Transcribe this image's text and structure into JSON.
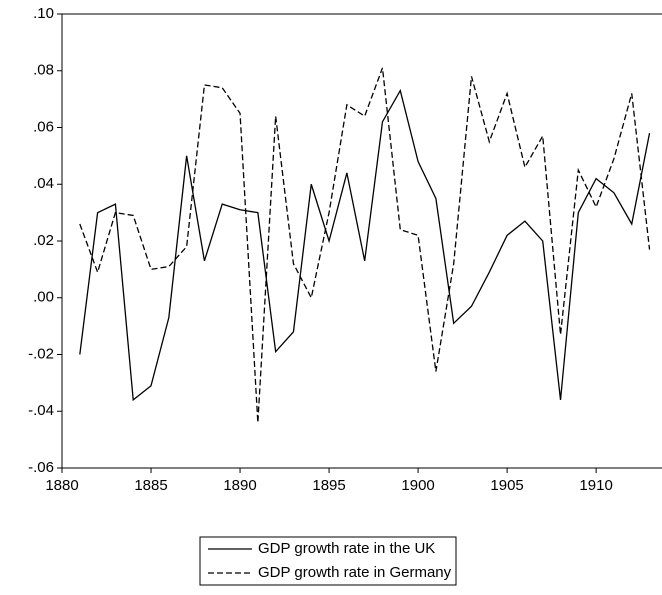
{
  "chart_data": {
    "type": "line",
    "x": [
      1881,
      1882,
      1883,
      1884,
      1885,
      1886,
      1887,
      1888,
      1889,
      1890,
      1891,
      1892,
      1893,
      1894,
      1895,
      1896,
      1897,
      1898,
      1899,
      1900,
      1901,
      1902,
      1903,
      1904,
      1905,
      1906,
      1907,
      1908,
      1909,
      1910,
      1911,
      1912,
      1913
    ],
    "series": [
      {
        "name": "GDP growth rate in the UK",
        "color": "#000000",
        "dash": "solid",
        "values": [
          -0.02,
          0.03,
          0.033,
          -0.036,
          -0.031,
          -0.007,
          0.05,
          0.013,
          0.033,
          0.031,
          0.03,
          -0.019,
          -0.012,
          0.04,
          0.02,
          0.044,
          0.013,
          0.062,
          0.073,
          0.048,
          0.035,
          -0.009,
          -0.003,
          0.009,
          0.022,
          0.027,
          0.02,
          -0.036,
          0.03,
          0.042,
          0.037,
          0.026,
          0.058
        ]
      },
      {
        "name": "GDP growth rate in Germany",
        "color": "#000000",
        "dash": "dashed",
        "values": [
          0.026,
          0.009,
          0.03,
          0.029,
          0.01,
          0.011,
          0.018,
          0.075,
          0.074,
          0.065,
          -0.044,
          0.064,
          0.012,
          0.0,
          0.03,
          0.068,
          0.064,
          0.081,
          0.024,
          0.022,
          -0.026,
          0.012,
          0.078,
          0.055,
          0.072,
          0.046,
          0.057,
          -0.013,
          0.045,
          0.032,
          0.049,
          0.072,
          0.017
        ]
      }
    ],
    "xlim": [
      1880,
      1913.7
    ],
    "xticks": [
      1880,
      1885,
      1890,
      1895,
      1900,
      1905,
      1910
    ],
    "ylim": [
      -0.06,
      0.1
    ],
    "yticks": [
      {
        "value": -0.06,
        "label": "-.06"
      },
      {
        "value": -0.04,
        "label": "-.04"
      },
      {
        "value": -0.02,
        "label": "-.02"
      },
      {
        "value": 0,
        "label": ".00"
      },
      {
        "value": 0.02,
        "label": ".02"
      },
      {
        "value": 0.04,
        "label": ".04"
      },
      {
        "value": 0.06,
        "label": ".06"
      },
      {
        "value": 0.08,
        "label": ".08"
      },
      {
        "value": 0.1,
        "label": ".10"
      }
    ],
    "legend": "bottom"
  }
}
